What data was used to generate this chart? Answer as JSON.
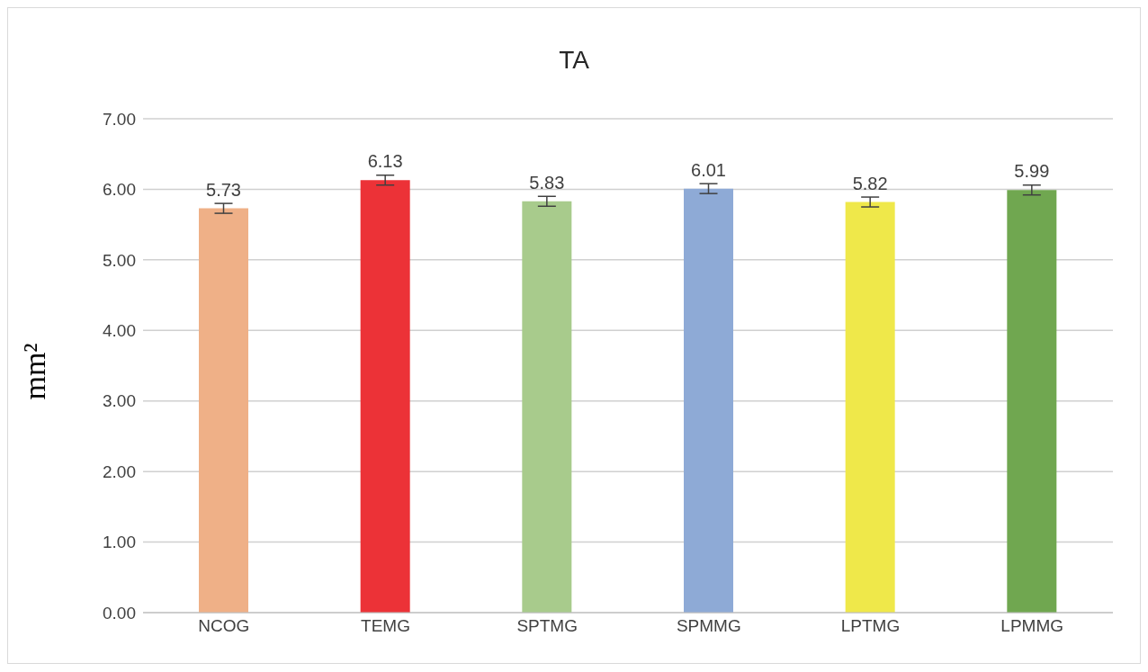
{
  "chart_data": {
    "type": "bar",
    "title": "TA",
    "ylabel": "mm²",
    "categories": [
      "NCOG",
      "TEMG",
      "SPTMG",
      "SPMMG",
      "LPTMG",
      "LPMMG"
    ],
    "values": [
      5.73,
      6.13,
      5.83,
      6.01,
      5.82,
      5.99
    ],
    "colors": [
      "#efb087",
      "#ec3237",
      "#a8cb8c",
      "#8eaad6",
      "#efe84a",
      "#70a750"
    ],
    "errors": [
      0.07,
      0.07,
      0.07,
      0.07,
      0.07,
      0.07
    ],
    "ylim": [
      0,
      7
    ],
    "yticks": [
      {
        "value": 0,
        "label": "0.00"
      },
      {
        "value": 1,
        "label": "1.00"
      },
      {
        "value": 2,
        "label": "2.00"
      },
      {
        "value": 3,
        "label": "3.00"
      },
      {
        "value": 4,
        "label": "4.00"
      },
      {
        "value": 5,
        "label": "5.00"
      },
      {
        "value": 6,
        "label": "6.00"
      },
      {
        "value": 7,
        "label": "7.00"
      }
    ],
    "grid": "y",
    "data_labels": true
  }
}
